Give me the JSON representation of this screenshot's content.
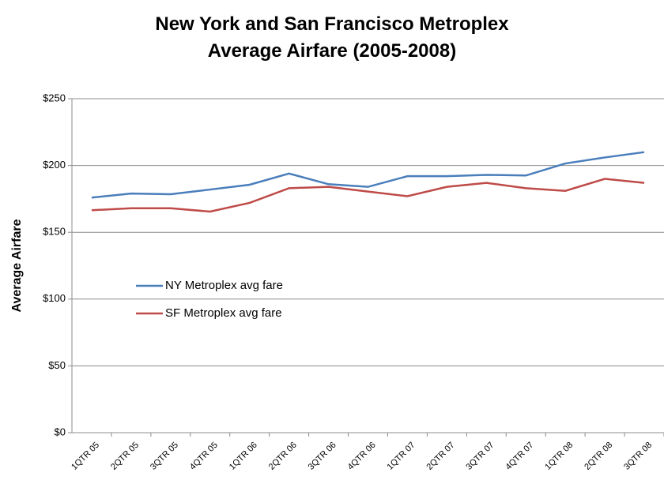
{
  "chart_data": {
    "type": "line",
    "title": "New York and San Francisco Metroplex Average Airfare (2005-2008)",
    "y_label": "Average Airfare",
    "categories": [
      "1QTR 05",
      "2QTR 05",
      "3QTR 05",
      "4QTR 05",
      "1QTR 06",
      "2QTR 06",
      "3QTR 06",
      "4QTR 06",
      "1QTR 07",
      "2QTR 07",
      "3QTR 07",
      "4QTR 07",
      "1QTR 08",
      "2QTR 08",
      "3QTR 08"
    ],
    "series": [
      {
        "name": "NY Metroplex avg fare",
        "color": "#4a7ebb",
        "values": [
          176,
          179,
          178.5,
          182,
          185.6,
          194,
          186,
          184,
          192,
          192,
          193,
          192.5,
          201.5,
          206,
          210
        ]
      },
      {
        "name": "SF Metroplex avg fare",
        "color": "#be4b48",
        "values": [
          166.5,
          168,
          168,
          165.5,
          172,
          183,
          184,
          180.5,
          177,
          184,
          187,
          183,
          181,
          190,
          187
        ]
      }
    ],
    "ylim": [
      0,
      250
    ],
    "yticks": [
      {
        "value": 0,
        "label": "$0"
      },
      {
        "value": 50,
        "label": "$50"
      },
      {
        "value": 100,
        "label": "$100"
      },
      {
        "value": 150,
        "label": "$150"
      },
      {
        "value": 200,
        "label": "$200"
      },
      {
        "value": 250,
        "label": "$250"
      }
    ],
    "grid": true
  }
}
